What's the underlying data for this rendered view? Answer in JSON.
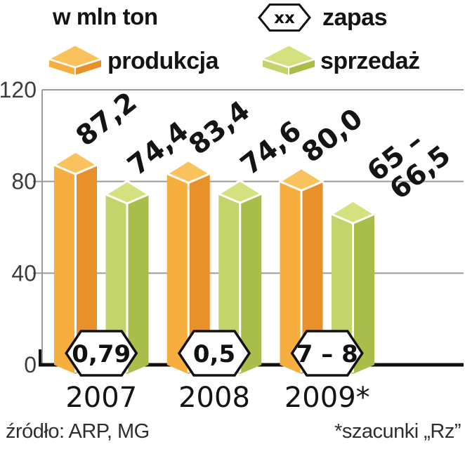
{
  "header": {
    "title": "w mln ton",
    "legend": {
      "zapas": {
        "symbol_text": "xx",
        "label": "zapas"
      },
      "produkcja": {
        "label": "produkcja"
      },
      "sprzedaz": {
        "label": "sprzedaż"
      }
    }
  },
  "footer": {
    "source": "źródło: ARP, MG",
    "note": "*szacunki „Rz”"
  },
  "chart_data": {
    "type": "bar",
    "title": "w mln ton",
    "unit": "mln ton",
    "categories": [
      "2007",
      "2008",
      "2009*"
    ],
    "series": [
      {
        "key": "produkcja",
        "name": "produkcja",
        "values": [
          87.2,
          83.4,
          80.0
        ],
        "display_labels": [
          "87,2",
          "83,4",
          "80,0"
        ],
        "color_left": "#F6AE3E",
        "color_right": "#E8912A",
        "color_top": "#F9C25D"
      },
      {
        "key": "sprzedaz",
        "name": "sprzedaż",
        "values": [
          74.4,
          74.6,
          65.75
        ],
        "display_labels": [
          "74,4",
          "74,6",
          "65 –\n66,5"
        ],
        "value_range_2009": "65 – 66,5",
        "color_left": "#C3D46B",
        "color_right": "#A9BD4B",
        "color_top": "#D5E07E"
      }
    ],
    "zapas_badges": {
      "name": "zapas",
      "labels": [
        "0,79",
        "0,5",
        "7 – 8"
      ]
    },
    "ylim": [
      0,
      120
    ],
    "yticks": [
      0,
      40,
      80,
      120
    ],
    "grid": true,
    "legend_position": "top",
    "grid_color": "#9b9b9b",
    "baseline_color": "#111111",
    "text_color": "#141414"
  }
}
